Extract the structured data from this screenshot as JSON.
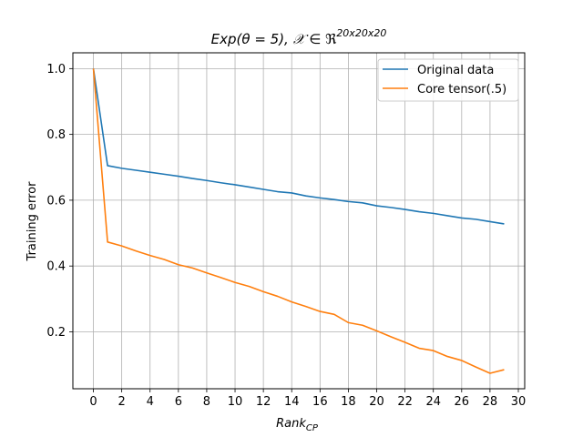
{
  "chart_data": {
    "type": "line",
    "title_main": "Exp(θ = 5), 𝒳 ∈ ℜ",
    "title_sup": "20x20x20",
    "xlabel_main": "Rank",
    "xlabel_sub": "CP",
    "ylabel": "Training error",
    "xlim": [
      -1.45,
      30.45
    ],
    "ylim": [
      0.027,
      1.048
    ],
    "xticks": [
      0,
      2,
      4,
      6,
      8,
      10,
      12,
      14,
      16,
      18,
      20,
      22,
      24,
      26,
      28,
      30
    ],
    "yticks": [
      0.2,
      0.4,
      0.6,
      0.8,
      1.0
    ],
    "ytick_labels": [
      "0.2",
      "0.4",
      "0.6",
      "0.8",
      "1.0"
    ],
    "grid": true,
    "legend_position": "top-right",
    "x": [
      0,
      1,
      2,
      3,
      4,
      5,
      6,
      7,
      8,
      9,
      10,
      11,
      12,
      13,
      14,
      15,
      16,
      17,
      18,
      19,
      20,
      21,
      22,
      23,
      24,
      25,
      26,
      27,
      28,
      29
    ],
    "series": [
      {
        "name": "Original data",
        "color": "#1f77b4",
        "values": [
          1.0,
          0.705,
          0.697,
          0.691,
          0.685,
          0.679,
          0.673,
          0.666,
          0.66,
          0.653,
          0.647,
          0.64,
          0.633,
          0.626,
          0.622,
          0.613,
          0.607,
          0.602,
          0.596,
          0.592,
          0.583,
          0.578,
          0.572,
          0.565,
          0.56,
          0.553,
          0.546,
          0.542,
          0.535,
          0.528
        ]
      },
      {
        "name": "Core tensor(.5)",
        "color": "#ff7f0e",
        "values": [
          1.0,
          0.473,
          0.461,
          0.446,
          0.432,
          0.42,
          0.404,
          0.394,
          0.379,
          0.365,
          0.35,
          0.338,
          0.322,
          0.308,
          0.291,
          0.277,
          0.262,
          0.253,
          0.228,
          0.22,
          0.203,
          0.185,
          0.168,
          0.15,
          0.143,
          0.125,
          0.113,
          0.093,
          0.074,
          0.085
        ]
      }
    ]
  }
}
